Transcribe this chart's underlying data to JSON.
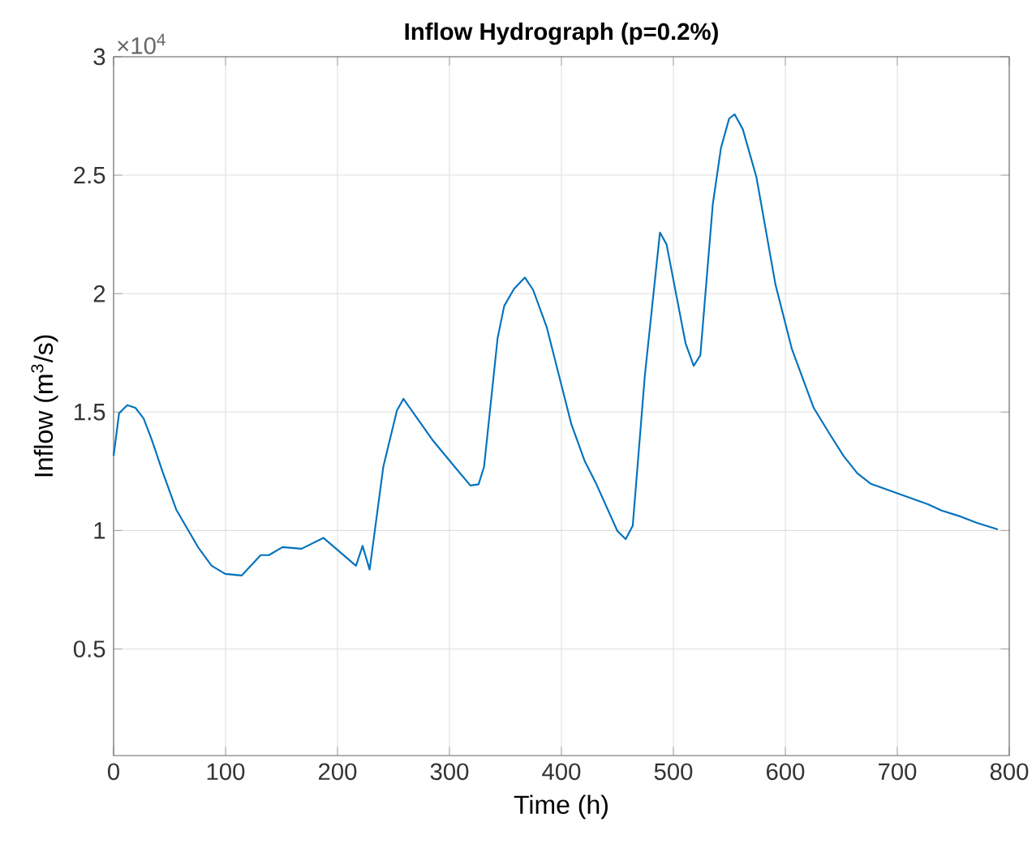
{
  "chart_data": {
    "type": "line",
    "title": "Inflow Hydrograph (p=0.2%)",
    "xlabel": "Time (h)",
    "ylabel": "Inflow (m$^{3}$/s)",
    "annotations": [
      "×10$^{4}$"
    ],
    "x": [
      0,
      4.9,
      12.2,
      19.5,
      26.8,
      34.1,
      43.8,
      56,
      65.7,
      75.4,
      87.6,
      99.7,
      114.3,
      131.4,
      138.7,
      150.9,
      167.9,
      187.4,
      197.1,
      216.5,
      222.4,
      228.7,
      240.9,
      253.1,
      258.9,
      284.7,
      306.6,
      318.7,
      326,
      330.9,
      343,
      348.9,
      357.7,
      367.4,
      374.7,
      386.9,
      408.8,
      420.9,
      430.7,
      450,
      457.4,
      463.7,
      474.5,
      488,
      493.9,
      510.9,
      518.2,
      524.1,
      535.2,
      542.5,
      549.8,
      554.7,
      562,
      574.2,
      591.2,
      605.8,
      625.3,
      639.9,
      652,
      664.2,
      676.4,
      703.1,
      727.4,
      739.6,
      756.6,
      771.2,
      789.8
    ],
    "series": [
      {
        "color": "#0072bd",
        "values": [
          1.315,
          1.495,
          1.529,
          1.518,
          1.473,
          1.383,
          1.247,
          1.088,
          1.009,
          0.93,
          0.851,
          0.817,
          0.81,
          0.896,
          0.896,
          0.93,
          0.923,
          0.969,
          0.93,
          0.851,
          0.935,
          0.835,
          1.269,
          1.507,
          1.556,
          1.383,
          1.258,
          1.19,
          1.195,
          1.269,
          1.812,
          1.948,
          2.02,
          2.068,
          2.016,
          1.858,
          1.45,
          1.292,
          1.201,
          0.998,
          0.964,
          1.02,
          1.654,
          2.258,
          2.208,
          1.79,
          1.695,
          1.74,
          2.377,
          2.615,
          2.739,
          2.757,
          2.694,
          2.491,
          2.038,
          1.767,
          1.518,
          1.405,
          1.315,
          1.242,
          1.197,
          1.152,
          1.111,
          1.084,
          1.059,
          1.032,
          1.005
        ]
      }
    ],
    "xlim": [
      0,
      800
    ],
    "ylim": [
      0.05,
      3
    ],
    "xticks": [
      0,
      100,
      200,
      300,
      400,
      500,
      600,
      700,
      800
    ],
    "yticks": [
      0.5,
      1,
      1.5,
      2,
      2.5,
      3
    ],
    "grid": true,
    "line_style": "solid"
  }
}
